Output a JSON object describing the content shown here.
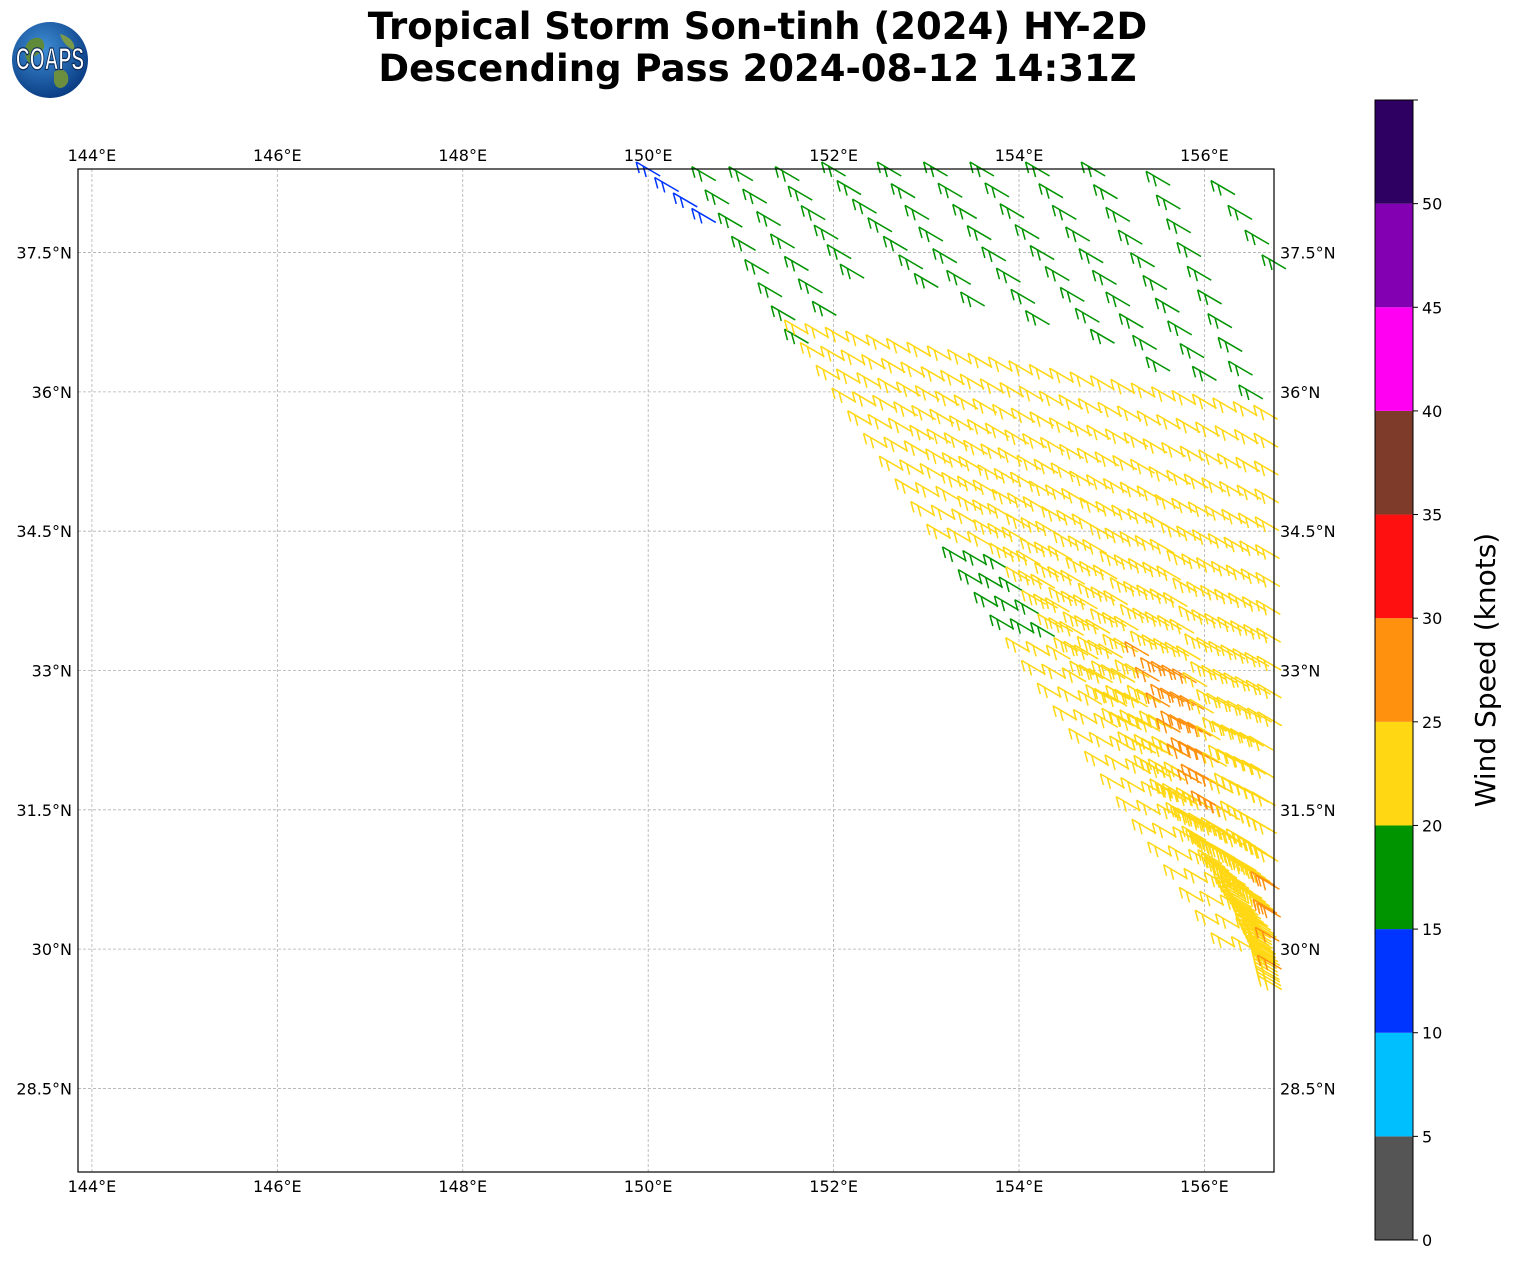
{
  "title": {
    "line1": "Tropical Storm Son-tinh (2024) HY-2D",
    "line2": "Descending Pass 2024-08-12 14:31Z"
  },
  "logo": {
    "text": "COAPS",
    "icon": "globe-logo-icon"
  },
  "map": {
    "lon_ticks": [
      "144°E",
      "146°E",
      "148°E",
      "150°E",
      "152°E",
      "154°E",
      "156°E"
    ],
    "lat_ticks": [
      "37.5°N",
      "36°N",
      "34.5°N",
      "33°N",
      "31.5°N",
      "30°N",
      "28.5°N"
    ],
    "lon_values": [
      144,
      146,
      148,
      150,
      152,
      154,
      156
    ],
    "lat_values": [
      37.5,
      36,
      34.5,
      33,
      31.5,
      30,
      28.5
    ],
    "lon_range": [
      143.85,
      156.75
    ],
    "lat_range": [
      27.6,
      38.4
    ],
    "gridlines": true
  },
  "colorbar": {
    "label": "Wind Speed (knots)",
    "tick_labels": [
      "0",
      "5",
      "10",
      "15",
      "20",
      "25",
      "30",
      "35",
      "40",
      "45",
      "50"
    ],
    "bins": [
      {
        "from": 0,
        "to": 5,
        "color": "#555555"
      },
      {
        "from": 5,
        "to": 10,
        "color": "#00bfff"
      },
      {
        "from": 10,
        "to": 15,
        "color": "#0035ff"
      },
      {
        "from": 15,
        "to": 20,
        "color": "#009400"
      },
      {
        "from": 20,
        "to": 25,
        "color": "#ffd713"
      },
      {
        "from": 25,
        "to": 30,
        "color": "#ff910e"
      },
      {
        "from": 30,
        "to": 35,
        "color": "#ff1010"
      },
      {
        "from": 35,
        "to": 40,
        "color": "#7e3b2a"
      },
      {
        "from": 40,
        "to": 45,
        "color": "#ff00f2"
      },
      {
        "from": 45,
        "to": 50,
        "color": "#8200b2"
      },
      {
        "from": 50,
        "to": 55,
        "color": "#2e0061"
      }
    ],
    "range": [
      0,
      55
    ]
  },
  "swath": {
    "description_free": true,
    "along_track_rows": [
      {
        "lat0": 38.4,
        "lon0": 150.0,
        "lat1": 37.9,
        "lon1": 150.6,
        "speed": 12
      },
      {
        "lat0": 38.35,
        "lon0": 150.6,
        "lat1": 36.6,
        "lon1": 151.6,
        "speed": 17
      },
      {
        "lat0": 38.35,
        "lon0": 151.0,
        "lat1": 36.9,
        "lon1": 151.9,
        "speed": 17
      },
      {
        "lat0": 38.35,
        "lon0": 151.5,
        "lat1": 37.3,
        "lon1": 152.2,
        "speed": 17
      },
      {
        "lat0": 38.4,
        "lon0": 152.0,
        "lat1": 37.2,
        "lon1": 153.0,
        "speed": 17
      },
      {
        "lat0": 38.4,
        "lon0": 152.6,
        "lat1": 37.0,
        "lon1": 153.5,
        "speed": 17
      },
      {
        "lat0": 38.4,
        "lon0": 153.1,
        "lat1": 36.8,
        "lon1": 154.2,
        "speed": 17
      },
      {
        "lat0": 38.4,
        "lon0": 153.6,
        "lat1": 36.6,
        "lon1": 154.9,
        "speed": 17
      },
      {
        "lat0": 38.4,
        "lon0": 154.2,
        "lat1": 36.3,
        "lon1": 155.5,
        "speed": 17
      },
      {
        "lat0": 38.4,
        "lon0": 154.8,
        "lat1": 36.2,
        "lon1": 156.0,
        "speed": 17
      },
      {
        "lat0": 38.3,
        "lon0": 155.5,
        "lat1": 36.0,
        "lon1": 156.5,
        "speed": 17
      },
      {
        "lat0": 38.2,
        "lon0": 156.2,
        "lat1": 37.4,
        "lon1": 156.75,
        "speed": 17
      }
    ]
  }
}
